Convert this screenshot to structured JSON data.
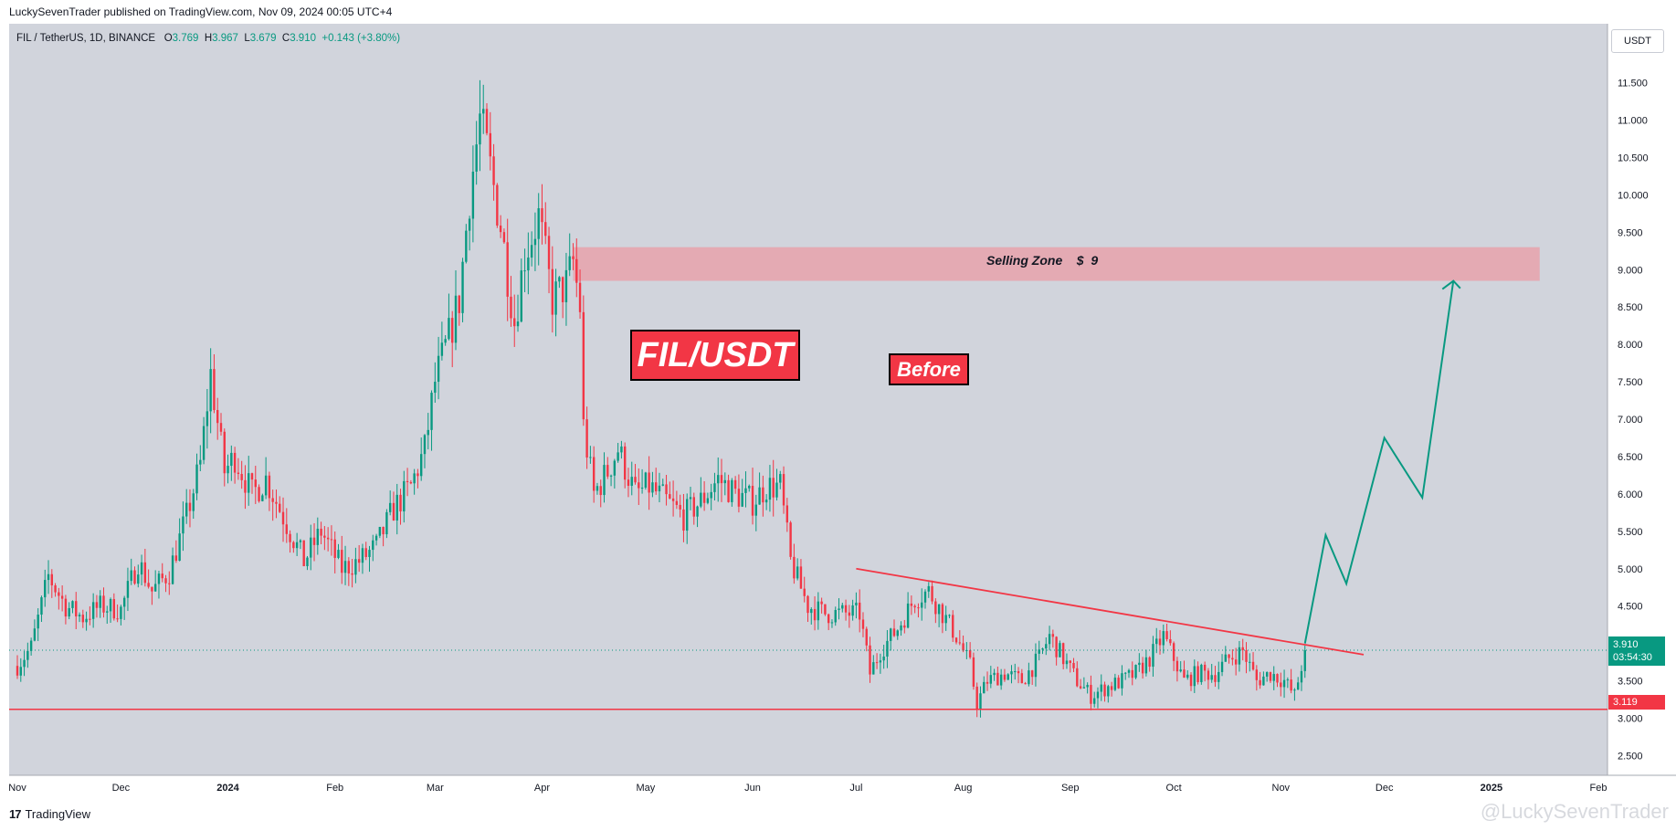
{
  "header": {
    "publisher_line": "LuckySevenTrader published on TradingView.com, Nov 09, 2024 00:05 UTC+4"
  },
  "legend": {
    "symbol": "FIL / TetherUS, 1D, BINANCE",
    "open_label": "O",
    "open": "3.769",
    "high_label": "H",
    "high": "3.967",
    "low_label": "L",
    "low": "3.679",
    "close_label": "C",
    "close": "3.910",
    "change": "+0.143 (+3.80%)"
  },
  "currency": "USDT",
  "annotations": {
    "title_box": "FIL/USDT",
    "before_badge": "Before",
    "selling_zone_label": "Selling Zone    $  9"
  },
  "price_tags": {
    "current_price": "3.910",
    "countdown": "03:54:30",
    "support_price": "3.119"
  },
  "footer": {
    "brand_mark": "17",
    "brand": "TradingView",
    "watermark": "@LuckySevenTrader"
  },
  "colors": {
    "up": "#089981",
    "down": "#f23645",
    "plot_bg": "#d1d4dc",
    "zone": "#e8a2ab",
    "trendline": "#f23645",
    "projection": "#089981"
  },
  "chart_data": {
    "type": "candlestick",
    "title": "FIL / TetherUS, 1D, BINANCE",
    "x_axis": {
      "labels": [
        "Nov",
        "Dec",
        "2024",
        "Feb",
        "Mar",
        "Apr",
        "May",
        "Jun",
        "Jul",
        "Aug",
        "Sep",
        "Oct",
        "Nov",
        "Dec",
        "2025",
        "Feb"
      ],
      "label_dates": [
        "2023-11-01",
        "2023-12-01",
        "2024-01-01",
        "2024-02-01",
        "2024-03-01",
        "2024-04-01",
        "2024-05-01",
        "2024-06-01",
        "2024-07-01",
        "2024-08-01",
        "2024-09-01",
        "2024-10-01",
        "2024-11-01",
        "2024-12-01",
        "2025-01-01",
        "2025-02-01"
      ]
    },
    "y_axis": {
      "ticks": [
        "11.500",
        "11.000",
        "10.500",
        "10.000",
        "9.500",
        "9.000",
        "8.500",
        "8.000",
        "7.500",
        "7.000",
        "6.500",
        "6.000",
        "5.500",
        "5.000",
        "4.500",
        "4.000",
        "3.500",
        "3.000",
        "2.500"
      ],
      "range": [
        2.1,
        12.05
      ],
      "position": "right"
    },
    "grid": false,
    "price_path": [
      [
        "2023-11-01",
        3.7
      ],
      [
        "2023-11-05",
        3.95
      ],
      [
        "2023-11-10",
        4.9
      ],
      [
        "2023-11-15",
        4.5
      ],
      [
        "2023-11-20",
        4.35
      ],
      [
        "2023-11-25",
        4.5
      ],
      [
        "2023-12-01",
        4.45
      ],
      [
        "2023-12-06",
        5.1
      ],
      [
        "2023-12-10",
        4.7
      ],
      [
        "2023-12-15",
        4.95
      ],
      [
        "2023-12-20",
        5.7
      ],
      [
        "2023-12-24",
        6.4
      ],
      [
        "2023-12-27",
        7.6
      ],
      [
        "2023-12-31",
        6.3
      ],
      [
        "2024-01-03",
        6.5
      ],
      [
        "2024-01-08",
        6.0
      ],
      [
        "2024-01-12",
        6.2
      ],
      [
        "2024-01-17",
        5.7
      ],
      [
        "2024-01-23",
        5.1
      ],
      [
        "2024-01-28",
        5.5
      ],
      [
        "2024-02-03",
        5.0
      ],
      [
        "2024-02-08",
        5.1
      ],
      [
        "2024-02-13",
        5.3
      ],
      [
        "2024-02-18",
        5.8
      ],
      [
        "2024-02-23",
        6.1
      ],
      [
        "2024-02-27",
        6.6
      ],
      [
        "2024-03-01",
        7.5
      ],
      [
        "2024-03-05",
        8.1
      ],
      [
        "2024-03-08",
        8.6
      ],
      [
        "2024-03-11",
        10.0
      ],
      [
        "2024-03-14",
        11.0
      ],
      [
        "2024-03-16",
        10.6
      ],
      [
        "2024-03-20",
        9.6
      ],
      [
        "2024-03-24",
        8.3
      ],
      [
        "2024-03-27",
        9.2
      ],
      [
        "2024-03-31",
        9.7
      ],
      [
        "2024-04-04",
        8.6
      ],
      [
        "2024-04-08",
        8.8
      ],
      [
        "2024-04-10",
        9.1
      ],
      [
        "2024-04-12",
        8.5
      ],
      [
        "2024-04-13",
        6.9
      ],
      [
        "2024-04-16",
        6.0
      ],
      [
        "2024-04-20",
        6.3
      ],
      [
        "2024-04-23",
        6.6
      ],
      [
        "2024-04-28",
        6.0
      ],
      [
        "2024-05-02",
        6.1
      ],
      [
        "2024-05-07",
        5.9
      ],
      [
        "2024-05-12",
        5.7
      ],
      [
        "2024-05-17",
        5.9
      ],
      [
        "2024-05-22",
        6.2
      ],
      [
        "2024-05-27",
        6.0
      ],
      [
        "2024-06-01",
        5.9
      ],
      [
        "2024-06-05",
        6.1
      ],
      [
        "2024-06-09",
        6.1
      ],
      [
        "2024-06-12",
        5.1
      ],
      [
        "2024-06-17",
        4.5
      ],
      [
        "2024-06-22",
        4.4
      ],
      [
        "2024-06-27",
        4.4
      ],
      [
        "2024-07-02",
        4.4
      ],
      [
        "2024-07-05",
        3.6
      ],
      [
        "2024-07-08",
        3.9
      ],
      [
        "2024-07-13",
        4.2
      ],
      [
        "2024-07-18",
        4.6
      ],
      [
        "2024-07-22",
        4.7
      ],
      [
        "2024-07-26",
        4.4
      ],
      [
        "2024-07-30",
        4.1
      ],
      [
        "2024-08-03",
        3.7
      ],
      [
        "2024-08-05",
        3.2
      ],
      [
        "2024-08-08",
        3.5
      ],
      [
        "2024-08-13",
        3.6
      ],
      [
        "2024-08-18",
        3.5
      ],
      [
        "2024-08-23",
        3.8
      ],
      [
        "2024-08-26",
        4.1
      ],
      [
        "2024-08-30",
        3.8
      ],
      [
        "2024-09-03",
        3.5
      ],
      [
        "2024-09-07",
        3.3
      ],
      [
        "2024-09-11",
        3.4
      ],
      [
        "2024-09-16",
        3.5
      ],
      [
        "2024-09-20",
        3.6
      ],
      [
        "2024-09-24",
        3.8
      ],
      [
        "2024-09-28",
        4.1
      ],
      [
        "2024-10-01",
        3.8
      ],
      [
        "2024-10-04",
        3.5
      ],
      [
        "2024-10-08",
        3.6
      ],
      [
        "2024-10-13",
        3.6
      ],
      [
        "2024-10-17",
        3.8
      ],
      [
        "2024-10-21",
        3.9
      ],
      [
        "2024-10-25",
        3.5
      ],
      [
        "2024-10-29",
        3.6
      ],
      [
        "2024-11-02",
        3.5
      ],
      [
        "2024-11-05",
        3.3
      ],
      [
        "2024-11-07",
        3.7
      ],
      [
        "2024-11-08",
        3.91
      ]
    ],
    "selling_zone": {
      "label": "Selling Zone    $  9",
      "from": "2024-04-10",
      "to": "2025-01-15",
      "low": 8.85,
      "high": 9.3
    },
    "trendline": {
      "start": [
        "2024-07-01",
        5.0
      ],
      "end": [
        "2024-11-25",
        3.85
      ]
    },
    "support_line": {
      "price": 3.119
    },
    "current_price_line": {
      "price": 3.91
    },
    "projection_path": [
      [
        "2024-11-08",
        4.0
      ],
      [
        "2024-11-14",
        5.45
      ],
      [
        "2024-11-20",
        4.8
      ],
      [
        "2024-12-01",
        6.75
      ],
      [
        "2024-12-12",
        5.95
      ],
      [
        "2024-12-21",
        8.85
      ],
      [
        "2024-12-23",
        8.75
      ]
    ]
  }
}
